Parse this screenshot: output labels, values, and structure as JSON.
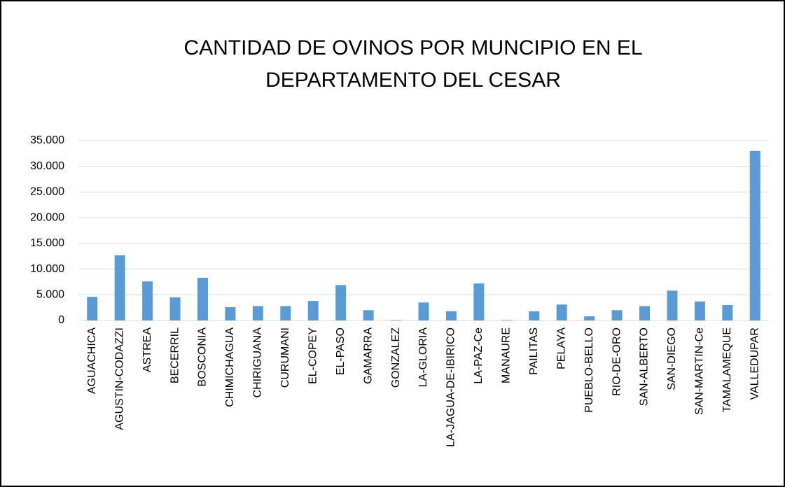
{
  "chart_data": {
    "type": "bar",
    "title": [
      "CANTIDAD DE OVINOS POR MUNCIPIO EN EL",
      "DEPARTAMENTO DEL CESAR"
    ],
    "categories": [
      "AGUACHICA",
      "AGUSTIN-CODAZZI",
      "ASTREA",
      "BECERRIL",
      "BOSCONIA",
      "CHIMICHAGUA",
      "CHIRIGUANA",
      "CURUMANI",
      "EL-COPEY",
      "EL-PASO",
      "GAMARRA",
      "GONZALEZ",
      "LA-GLORIA",
      "LA-JAGUA-DE-IBIRICO",
      "LA-PAZ-Ce",
      "MANAURE",
      "PAILITAS",
      "PELAYA",
      "PUEBLO-BELLO",
      "RIO-DE-ORO",
      "SAN-ALBERTO",
      "SAN-DIEGO",
      "SAN-MARTIN-Ce",
      "TAMALAMEQUE",
      "VALLEDUPAR"
    ],
    "values": [
      4600,
      12700,
      7600,
      4500,
      8300,
      2600,
      2800,
      2800,
      3800,
      6900,
      2000,
      100,
      3500,
      1800,
      7200,
      100,
      1800,
      3100,
      800,
      2000,
      2800,
      5800,
      3700,
      3000,
      33000
    ],
    "color": "#5b9bd5",
    "ylim": [
      0,
      35000
    ],
    "yticks": [
      0,
      {
        "value": 5000,
        "label": "5.000"
      },
      {
        "value": 10000,
        "label": "10.000"
      },
      {
        "value": 15000,
        "label": "15.000"
      },
      {
        "value": 20000,
        "label": "20.000"
      },
      {
        "value": 25000,
        "label": "25.000"
      },
      {
        "value": 30000,
        "label": "30.000"
      },
      {
        "value": 35000,
        "label": "35.000"
      }
    ],
    "grid": true
  }
}
